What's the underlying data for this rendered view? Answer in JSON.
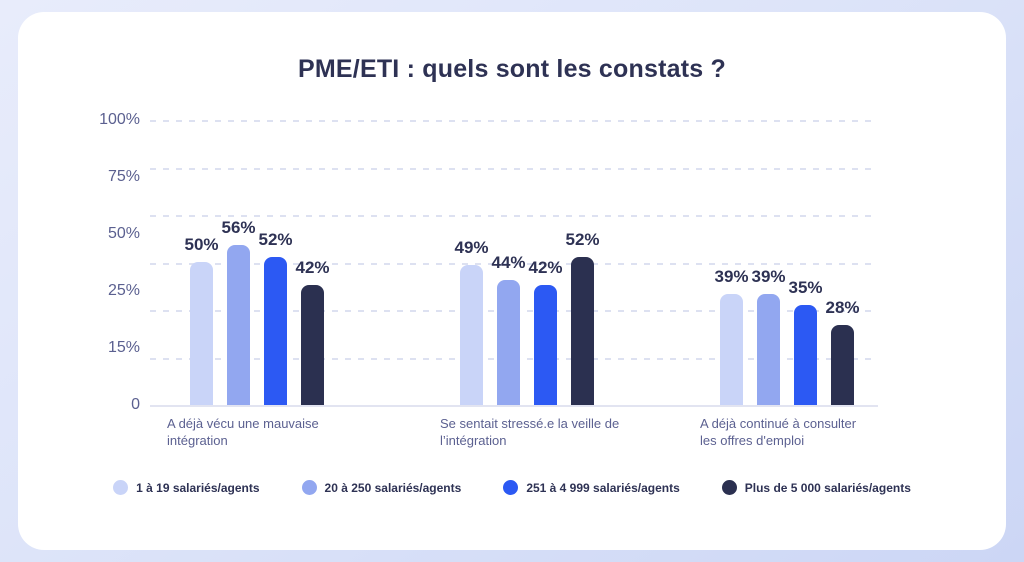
{
  "chart_data": {
    "type": "bar",
    "title": "PME/ETI : quels sont les constats ?",
    "categories": [
      "A déjà vécu une mauvaise intégration",
      "Se sentait stressé.e la veille de l’intégration",
      "A déjà continué à consulter les offres d'emploi"
    ],
    "category_lines": [
      [
        "A déjà vécu une mauvaise",
        "intégration"
      ],
      [
        "Se sentait stressé.e la veille de",
        "l’intégration"
      ],
      [
        "A déjà continué à consulter",
        "les offres d'emploi"
      ]
    ],
    "series": [
      {
        "name": "1 à 19 salariés/agents",
        "color": "#c9d4f8",
        "values": [
          50,
          49,
          39
        ]
      },
      {
        "name": "20 à 250 salariés/agents",
        "color": "#92a7f0",
        "values": [
          56,
          44,
          39
        ]
      },
      {
        "name": "251 à 4 999 salariés/agents",
        "color": "#2c59f3",
        "values": [
          52,
          42,
          35
        ]
      },
      {
        "name": "Plus de 5 000 salariés/agents",
        "color": "#2b3050",
        "values": [
          42,
          52,
          28
        ]
      }
    ],
    "value_suffix": "%",
    "y_ticks": [
      "100%",
      "75%",
      "50%",
      "25%",
      "15%",
      "0"
    ],
    "ylim": [
      0,
      100
    ],
    "grid": "horizontal-dashed",
    "legend_position": "bottom"
  },
  "colors": {
    "card_background": "#ffffff",
    "page_gradient_start": "#e8ecfb",
    "page_gradient_end": "#ccd6f5",
    "title_text": "#2e3254",
    "value_label_text": "#2e3254",
    "axis_label_text": "#5b6090",
    "category_label_text": "#5c6191",
    "gridline": "#dde1f1",
    "baseline": "#e2e4f1",
    "legend_text": "#2e3254"
  }
}
